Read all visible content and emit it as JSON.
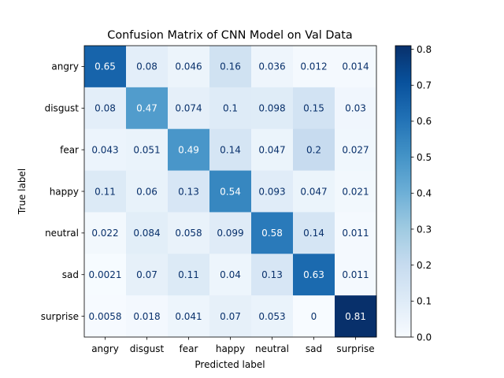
{
  "chart_data": {
    "type": "heatmap",
    "title": "Confusion Matrix of CNN Model on Val Data",
    "xlabel": "Predicted label",
    "ylabel": "True label",
    "x_categories": [
      "angry",
      "disgust",
      "fear",
      "happy",
      "neutral",
      "sad",
      "surprise"
    ],
    "y_categories": [
      "angry",
      "disgust",
      "fear",
      "happy",
      "neutral",
      "sad",
      "surprise"
    ],
    "values": [
      [
        0.65,
        0.08,
        0.046,
        0.16,
        0.036,
        0.012,
        0.014
      ],
      [
        0.08,
        0.47,
        0.074,
        0.1,
        0.098,
        0.15,
        0.03
      ],
      [
        0.043,
        0.051,
        0.49,
        0.14,
        0.047,
        0.2,
        0.027
      ],
      [
        0.11,
        0.06,
        0.13,
        0.54,
        0.093,
        0.047,
        0.021
      ],
      [
        0.022,
        0.084,
        0.058,
        0.099,
        0.58,
        0.14,
        0.011
      ],
      [
        0.0021,
        0.07,
        0.11,
        0.04,
        0.13,
        0.63,
        0.011
      ],
      [
        0.0058,
        0.018,
        0.041,
        0.07,
        0.053,
        0,
        0.81
      ]
    ],
    "labels": [
      [
        "0.65",
        "0.08",
        "0.046",
        "0.16",
        "0.036",
        "0.012",
        "0.014"
      ],
      [
        "0.08",
        "0.47",
        "0.074",
        "0.1",
        "0.098",
        "0.15",
        "0.03"
      ],
      [
        "0.043",
        "0.051",
        "0.49",
        "0.14",
        "0.047",
        "0.2",
        "0.027"
      ],
      [
        "0.11",
        "0.06",
        "0.13",
        "0.54",
        "0.093",
        "0.047",
        "0.021"
      ],
      [
        "0.022",
        "0.084",
        "0.058",
        "0.099",
        "0.58",
        "0.14",
        "0.011"
      ],
      [
        "0.0021",
        "0.07",
        "0.11",
        "0.04",
        "0.13",
        "0.63",
        "0.011"
      ],
      [
        "0.0058",
        "0.018",
        "0.041",
        "0.07",
        "0.053",
        "0",
        "0.81"
      ]
    ],
    "colormap": "Blues",
    "color_range": [
      0,
      0.81
    ],
    "colorbar_ticks": [
      0.0,
      0.1,
      0.2,
      0.3,
      0.4,
      0.5,
      0.6,
      0.7,
      0.8
    ],
    "colorbar_tick_labels": [
      "0.0",
      "0.1",
      "0.2",
      "0.3",
      "0.4",
      "0.5",
      "0.6",
      "0.7",
      "0.8"
    ],
    "colors": {
      "light_text": "#ffffff",
      "dark_text": "#08306b",
      "axis": "#000000"
    }
  }
}
